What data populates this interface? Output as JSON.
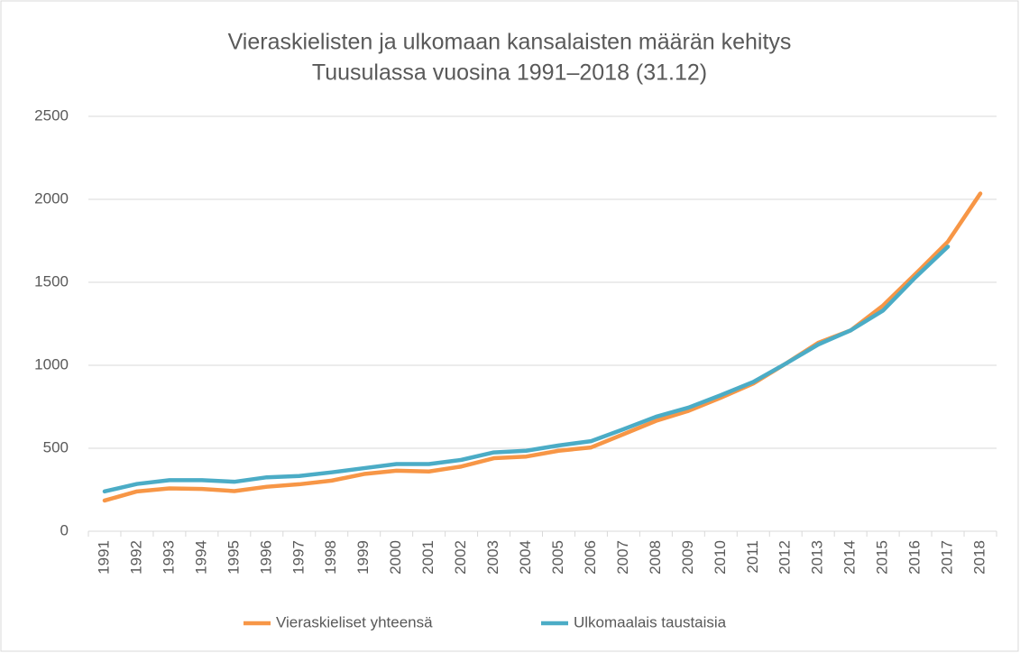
{
  "chart_data": {
    "type": "line",
    "title": [
      "Vieraskielisten ja ulkomaan kansalaisten määrän kehitys",
      "Tuusulassa vuosina 1991–2018 (31.12)"
    ],
    "categories": [
      "1991",
      "1992",
      "1993",
      "1994",
      "1995",
      "1996",
      "1997",
      "1998",
      "1999",
      "2000",
      "2001",
      "2002",
      "2003",
      "2004",
      "2005",
      "2006",
      "2007",
      "2008",
      "2009",
      "2010",
      "2011",
      "2012",
      "2013",
      "2014",
      "2015",
      "2016",
      "2017",
      "2018"
    ],
    "series": [
      {
        "name": "Vieraskieliset yhteensä",
        "color": "#f79646",
        "values": [
          185,
          240,
          258,
          255,
          242,
          268,
          283,
          305,
          345,
          365,
          360,
          390,
          440,
          450,
          485,
          505,
          585,
          665,
          725,
          805,
          890,
          1010,
          1135,
          1210,
          1360,
          1550,
          1745,
          2035
        ]
      },
      {
        "name": "Ulkomaalais taustaisia",
        "color": "#4bacc6",
        "values": [
          240,
          285,
          308,
          308,
          298,
          325,
          333,
          355,
          380,
          405,
          405,
          430,
          475,
          485,
          517,
          543,
          615,
          690,
          745,
          820,
          900,
          1010,
          1125,
          1210,
          1330,
          1530,
          1715,
          null
        ]
      }
    ],
    "ylim": [
      0,
      2500
    ],
    "yticks": [
      0,
      500,
      1000,
      1500,
      2000,
      2500
    ],
    "grid": true,
    "legend": "bottom"
  }
}
